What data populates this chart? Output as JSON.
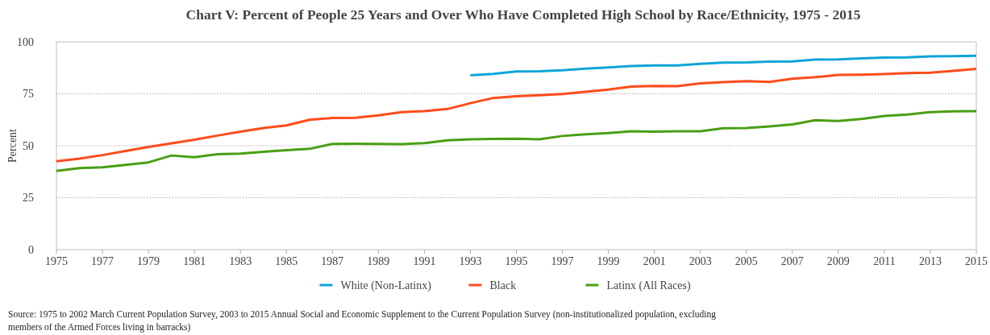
{
  "chart_data": {
    "type": "line",
    "title": "Chart V: Percent of People 25 Years and Over Who Have Completed High School by Race/Ethnicity, 1975 - 2015",
    "ylabel": "Percent",
    "xlim": [
      1975,
      2015
    ],
    "xticks": [
      1975,
      1977,
      1979,
      1981,
      1983,
      1985,
      1987,
      1989,
      1991,
      1993,
      1995,
      1997,
      1999,
      2001,
      2003,
      2005,
      2007,
      2009,
      2011,
      2013,
      2015
    ],
    "ylim": [
      0,
      100
    ],
    "yticks": [
      0,
      25,
      50,
      75,
      100
    ],
    "grid": "y",
    "legend": "bottom",
    "marker": "none",
    "line_style": "solid",
    "series": [
      {
        "name": "White (Non-Latinx)",
        "color": "#0ea5d8",
        "x": [
          1993,
          1994,
          1995,
          1996,
          1997,
          1998,
          1999,
          2000,
          2001,
          2002,
          2003,
          2004,
          2005,
          2006,
          2007,
          2008,
          2009,
          2010,
          2011,
          2012,
          2013,
          2014,
          2015
        ],
        "values": [
          83.9,
          84.6,
          85.8,
          85.9,
          86.3,
          87.1,
          87.7,
          88.4,
          88.7,
          88.7,
          89.4,
          90.0,
          90.1,
          90.5,
          90.6,
          91.5,
          91.6,
          92.1,
          92.4,
          92.5,
          93.0,
          93.1,
          93.3
        ]
      },
      {
        "name": "Black",
        "color": "#ff4b1a",
        "x": [
          1975,
          1976,
          1977,
          1978,
          1979,
          1980,
          1981,
          1982,
          1983,
          1984,
          1985,
          1986,
          1987,
          1988,
          1989,
          1990,
          1991,
          1992,
          1993,
          1994,
          1995,
          1996,
          1997,
          1998,
          1999,
          2000,
          2001,
          2002,
          2003,
          2004,
          2005,
          2006,
          2007,
          2008,
          2009,
          2010,
          2011,
          2012,
          2013,
          2014,
          2015
        ],
        "values": [
          42.5,
          43.8,
          45.5,
          47.5,
          49.4,
          51.2,
          52.9,
          54.9,
          56.8,
          58.5,
          59.8,
          62.5,
          63.4,
          63.5,
          64.6,
          66.2,
          66.7,
          67.7,
          70.5,
          73.0,
          73.8,
          74.3,
          74.9,
          76.0,
          77.0,
          78.5,
          78.8,
          78.7,
          80.0,
          80.6,
          81.1,
          80.7,
          82.3,
          83.0,
          84.1,
          84.2,
          84.5,
          85.0,
          85.2,
          86.0,
          87.0
        ]
      },
      {
        "name": "Latinx (All Races)",
        "color": "#4a9e14",
        "x": [
          1975,
          1976,
          1977,
          1978,
          1979,
          1980,
          1981,
          1982,
          1983,
          1984,
          1985,
          1986,
          1987,
          1988,
          1989,
          1990,
          1991,
          1992,
          1993,
          1994,
          1995,
          1996,
          1997,
          1998,
          1999,
          2000,
          2001,
          2002,
          2003,
          2004,
          2005,
          2006,
          2007,
          2008,
          2009,
          2010,
          2011,
          2012,
          2013,
          2014,
          2015
        ],
        "values": [
          37.9,
          39.2,
          39.6,
          40.8,
          42.0,
          45.3,
          44.5,
          45.9,
          46.2,
          47.1,
          47.9,
          48.5,
          50.9,
          51.0,
          50.9,
          50.8,
          51.3,
          52.6,
          53.1,
          53.3,
          53.4,
          53.1,
          54.7,
          55.5,
          56.1,
          57.0,
          56.8,
          57.0,
          57.0,
          58.4,
          58.5,
          59.3,
          60.3,
          62.3,
          61.9,
          62.9,
          64.3,
          65.0,
          66.2,
          66.6,
          66.7
        ]
      }
    ],
    "annotations": [
      "Source: 1975 to 2002 March Current Population Survey, 2003 to 2015 Annual Social and Economic Supplement to the Current Population Survey (non-institutionalized population, excluding members of the Armed Forces living in barracks)"
    ]
  }
}
